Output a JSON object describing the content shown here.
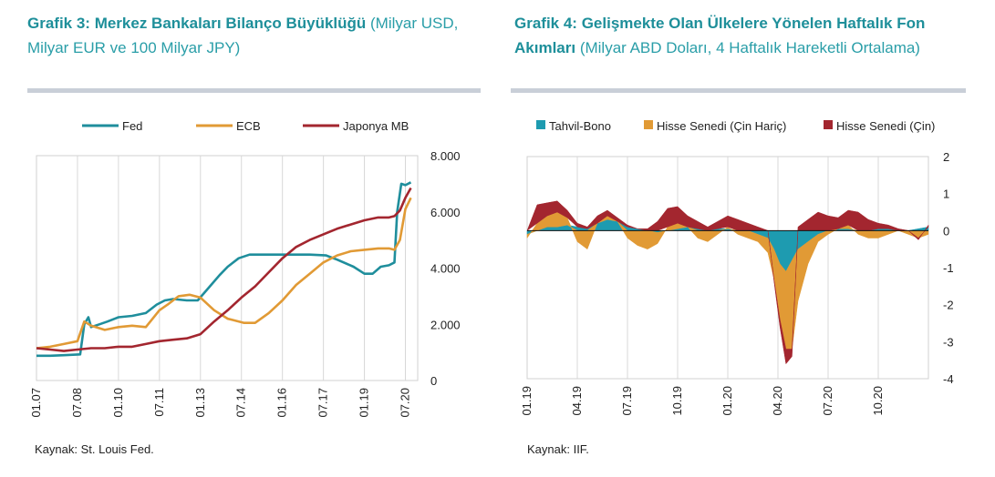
{
  "charts": [
    {
      "title_bold": "Grafik 3: Merkez Bankaları Bilanço Büyüklüğü",
      "title_rest": " (Milyar USD, Milyar EUR ve 100 Milyar JPY)",
      "source": "Kaynak: St. Louis Fed."
    },
    {
      "title_bold": "Grafik 4: Gelişmekte Olan Ülkelere Yönelen Haftalık Fon Akımları",
      "title_rest": " (Milyar ABD Doları, 4 Haftalık Hareketli Ortalama)",
      "source": "Kaynak: IIF."
    }
  ],
  "chart_data": [
    {
      "type": "line",
      "title": "Grafik 3: Merkez Bankaları Bilanço Büyüklüğü (Milyar USD, Milyar EUR ve 100 Milyar JPY)",
      "x_tick_labels": [
        "01.07",
        "07.08",
        "01.10",
        "07.11",
        "01.13",
        "07.14",
        "01.16",
        "07.17",
        "01.19",
        "07.20"
      ],
      "y_tick_labels": [
        "0",
        "2.000",
        "4.000",
        "6.000",
        "8.000"
      ],
      "ylim": [
        0,
        8000
      ],
      "legend_position": "top",
      "series": [
        {
          "name": "Fed",
          "color": "#1f8e9c",
          "x": [
            2007.0,
            2007.5,
            2008.0,
            2008.6,
            2008.75,
            2008.9,
            2009.0,
            2009.3,
            2009.6,
            2010.0,
            2010.5,
            2011.0,
            2011.4,
            2011.7,
            2012.0,
            2012.5,
            2012.9,
            2013.3,
            2013.7,
            2014.0,
            2014.4,
            2014.8,
            2015.2,
            2015.8,
            2016.5,
            2017.0,
            2017.6,
            2018.0,
            2018.6,
            2019.0,
            2019.3,
            2019.6,
            2019.9,
            2020.1,
            2020.2,
            2020.35,
            2020.5,
            2020.7
          ],
          "y": [
            880,
            880,
            900,
            930,
            2000,
            2250,
            1900,
            2000,
            2100,
            2250,
            2300,
            2400,
            2700,
            2850,
            2900,
            2850,
            2850,
            3300,
            3750,
            4050,
            4350,
            4480,
            4480,
            4480,
            4480,
            4480,
            4450,
            4300,
            4050,
            3800,
            3800,
            4050,
            4100,
            4200,
            6000,
            7000,
            6950,
            7050
          ]
        },
        {
          "name": "ECB",
          "color": "#e19a35",
          "x": [
            2007.0,
            2007.5,
            2008.0,
            2008.5,
            2008.75,
            2009.0,
            2009.5,
            2010.0,
            2010.5,
            2011.0,
            2011.5,
            2011.8,
            2012.2,
            2012.6,
            2013.0,
            2013.5,
            2014.0,
            2014.6,
            2015.0,
            2015.5,
            2016.0,
            2016.5,
            2017.0,
            2017.5,
            2018.0,
            2018.5,
            2019.0,
            2019.5,
            2019.9,
            2020.1,
            2020.3,
            2020.5,
            2020.7
          ],
          "y": [
            1150,
            1200,
            1300,
            1400,
            2100,
            1950,
            1800,
            1900,
            1950,
            1900,
            2500,
            2700,
            3000,
            3050,
            2950,
            2500,
            2200,
            2050,
            2050,
            2400,
            2850,
            3400,
            3800,
            4200,
            4450,
            4600,
            4650,
            4700,
            4700,
            4650,
            5000,
            6100,
            6500
          ]
        },
        {
          "name": "Japonya MB",
          "color": "#a3262f",
          "x": [
            2007.0,
            2007.5,
            2008.0,
            2008.5,
            2009.0,
            2009.5,
            2010.0,
            2010.5,
            2011.0,
            2011.5,
            2012.0,
            2012.5,
            2013.0,
            2013.5,
            2014.0,
            2014.5,
            2015.0,
            2015.5,
            2016.0,
            2016.5,
            2017.0,
            2017.5,
            2018.0,
            2018.5,
            2019.0,
            2019.5,
            2019.9,
            2020.1,
            2020.3,
            2020.5,
            2020.7
          ],
          "y": [
            1150,
            1100,
            1050,
            1100,
            1150,
            1150,
            1200,
            1200,
            1300,
            1400,
            1450,
            1500,
            1650,
            2100,
            2500,
            2950,
            3350,
            3850,
            4350,
            4750,
            5000,
            5200,
            5400,
            5550,
            5700,
            5800,
            5800,
            5850,
            6050,
            6500,
            6850
          ]
        }
      ]
    },
    {
      "type": "area",
      "title": "Grafik 4: Gelişmekte Olan Ülkelere Yönelen Haftalık Fon Akımları (Milyar ABD Doları, 4 Haftalık Hareketli Ortalama)",
      "x_tick_labels": [
        "01.19",
        "04.19",
        "07.19",
        "10.19",
        "01.20",
        "04.20",
        "07.20",
        "10.20"
      ],
      "y_tick_labels": [
        "2",
        "1",
        "0",
        "-1",
        "-2",
        "-3",
        "-4"
      ],
      "ylim": [
        -4,
        2
      ],
      "stacked": true,
      "legend_position": "top",
      "x": [
        2019.0,
        2019.05,
        2019.1,
        2019.15,
        2019.2,
        2019.25,
        2019.3,
        2019.35,
        2019.4,
        2019.45,
        2019.5,
        2019.55,
        2019.6,
        2019.65,
        2019.7,
        2019.75,
        2019.8,
        2019.85,
        2019.9,
        2019.95,
        2020.0,
        2020.05,
        2020.1,
        2020.15,
        2020.2,
        2020.23,
        2020.26,
        2020.29,
        2020.32,
        2020.35,
        2020.4,
        2020.45,
        2020.5,
        2020.55,
        2020.6,
        2020.65,
        2020.7,
        2020.75,
        2020.8,
        2020.85,
        2020.9,
        2020.95,
        2021.0
      ],
      "series": [
        {
          "name": "Tahvil-Bono",
          "color": "#1e9bb0",
          "values": [
            -0.1,
            0.0,
            0.1,
            0.1,
            0.15,
            0.1,
            0.05,
            0.2,
            0.3,
            0.25,
            0.1,
            0.05,
            0.0,
            -0.05,
            0.0,
            0.05,
            0.1,
            0.05,
            0.0,
            0.05,
            0.05,
            0.0,
            0.0,
            -0.1,
            -0.2,
            -0.5,
            -0.9,
            -1.1,
            -0.8,
            -0.5,
            -0.3,
            -0.1,
            0.0,
            0.05,
            0.05,
            0.0,
            0.0,
            0.05,
            0.05,
            0.0,
            0.0,
            0.05,
            0.1
          ]
        },
        {
          "name": "Hisse Senedi (Çin Hariç)",
          "color": "#e19a35",
          "values": [
            -0.1,
            0.2,
            0.3,
            0.4,
            0.2,
            -0.3,
            -0.5,
            0.0,
            0.1,
            0.0,
            -0.2,
            -0.4,
            -0.5,
            -0.3,
            0.1,
            0.15,
            0.0,
            -0.2,
            -0.3,
            -0.1,
            0.05,
            -0.1,
            -0.2,
            -0.2,
            -0.4,
            -0.8,
            -1.5,
            -2.1,
            -2.4,
            -1.4,
            -0.6,
            -0.2,
            -0.1,
            0.0,
            0.1,
            -0.1,
            -0.2,
            -0.2,
            -0.1,
            0.0,
            -0.1,
            -0.2,
            -0.1
          ]
        },
        {
          "name": "Hisse Senedi (Çin)",
          "color": "#a3262f",
          "values": [
            0.0,
            0.5,
            0.35,
            0.3,
            0.2,
            0.1,
            0.05,
            0.2,
            0.15,
            0.1,
            0.05,
            0.0,
            0.05,
            0.25,
            0.5,
            0.45,
            0.3,
            0.2,
            0.1,
            0.2,
            0.3,
            0.3,
            0.2,
            0.1,
            0.0,
            -0.05,
            -0.2,
            -0.4,
            -0.2,
            0.1,
            0.3,
            0.5,
            0.4,
            0.3,
            0.4,
            0.5,
            0.3,
            0.15,
            0.1,
            0.05,
            0.0,
            -0.05,
            0.05
          ]
        }
      ]
    }
  ]
}
